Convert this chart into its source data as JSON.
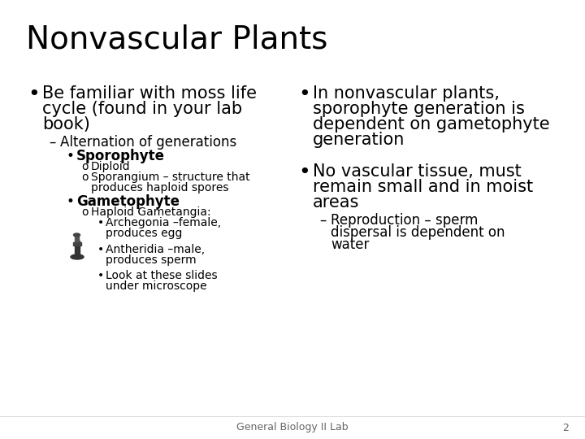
{
  "title": "Nonvascular Plants",
  "title_fontsize": 28,
  "background_color": "#ffffff",
  "text_color": "#000000",
  "footer_text": "General Biology II Lab",
  "footer_number": "2",
  "left_col": {
    "bullet1_line1": "Be familiar with moss life",
    "bullet1_line2": "cycle (found in your lab",
    "bullet1_line3": "book)",
    "sub1": "Alternation of generations",
    "sub2": "Sporophyte",
    "sub2a": "Diploid",
    "sub2b_line1": "Sporangium – structure that",
    "sub2b_line2": "produces haploid spores",
    "sub3": "Gametophyte",
    "sub3a": "Haploid Gametangia:",
    "sub3a1_line1": "Archegonia –female,",
    "sub3a1_line2": "produces egg",
    "sub3a2_line1": "Antheridia –male,",
    "sub3a2_line2": "produces sperm",
    "sub4_line1": "Look at these slides",
    "sub4_line2": "under microscope"
  },
  "right_col": {
    "bullet1_line1": "In nonvascular plants,",
    "bullet1_line2": "sporophyte generation is",
    "bullet1_line3": "dependent on gametophyte",
    "bullet1_line4": "generation",
    "bullet2_line1": "No vascular tissue, must",
    "bullet2_line2": "remain small and in moist",
    "bullet2_line3": "areas",
    "sub1_line1": "Reproduction – sperm",
    "sub1_line2": "dispersal is dependent on",
    "sub1_line3": "water"
  },
  "main_bullet_size": 15,
  "sub1_size": 12,
  "sub2_size": 11,
  "sub3_size": 10,
  "footer_size": 9
}
